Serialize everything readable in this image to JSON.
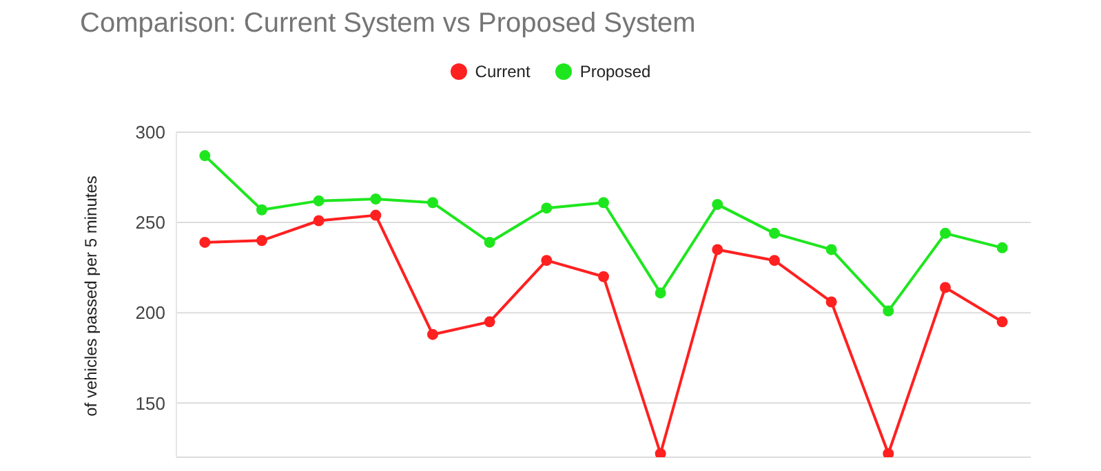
{
  "chart_data": {
    "type": "line",
    "title": "Comparison: Current System vs Proposed System",
    "ylabel": "of vehicles passed per 5 minutes",
    "categories": [
      null,
      null,
      null,
      null,
      null,
      null,
      null,
      null,
      null,
      null,
      null,
      null,
      null,
      null,
      null
    ],
    "series": [
      {
        "name": "Current",
        "color": "#ff2020",
        "values": [
          239,
          240,
          251,
          254,
          188,
          195,
          229,
          220,
          122,
          235,
          229,
          206,
          122,
          214,
          195
        ]
      },
      {
        "name": "Proposed",
        "color": "#1ee61e",
        "values": [
          287,
          257,
          262,
          263,
          261,
          239,
          258,
          261,
          211,
          260,
          244,
          235,
          201,
          244,
          236
        ]
      }
    ],
    "ylim": [
      120,
      300
    ],
    "yticks": [
      150,
      200,
      250,
      300
    ],
    "grid": "y",
    "legend": "top",
    "tick_labels": "y",
    "marker": "circle",
    "line_style": "solid"
  }
}
